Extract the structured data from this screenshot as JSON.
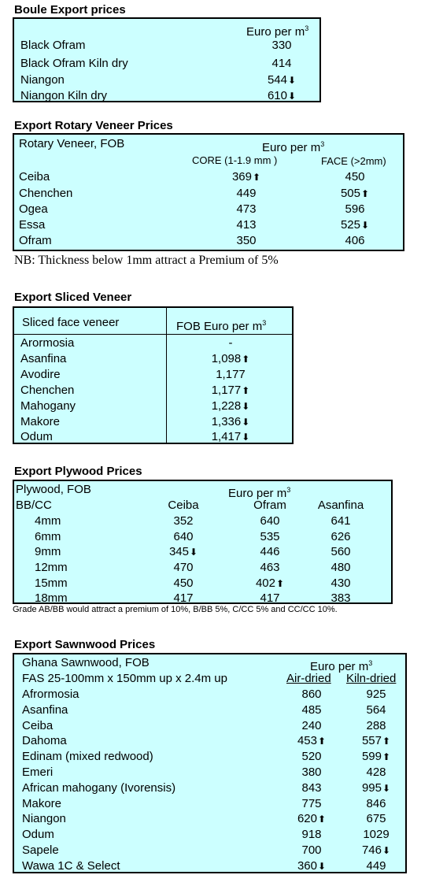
{
  "boule": {
    "title": "Boule Export prices",
    "header": "Euro per m",
    "header_sup": "3",
    "rows": [
      {
        "name": "Black Ofram",
        "value": "330",
        "arrow": ""
      },
      {
        "name": "Black Ofram  Kiln dry",
        "value": "414",
        "arrow": ""
      },
      {
        "name": "Niangon",
        "value": "544",
        "arrow": "down"
      },
      {
        "name": "Niangon Kiln dry",
        "value": "610",
        "arrow": "down"
      }
    ]
  },
  "rotary": {
    "title": "Export Rotary Veneer Prices",
    "label": "Rotary Veneer,  FOB",
    "header": "Euro   per m",
    "header_sup": "3",
    "col1": "CORE (1-1.9 mm )",
    "col2": "FACE (>2mm)",
    "rows": [
      {
        "name": "Ceiba",
        "core": "369",
        "core_arrow": "up",
        "face": "450",
        "face_arrow": ""
      },
      {
        "name": "Chenchen",
        "core": "449",
        "core_arrow": "",
        "face": "505",
        "face_arrow": "up"
      },
      {
        "name": "Ogea",
        "core": "473",
        "core_arrow": "",
        "face": "596",
        "face_arrow": ""
      },
      {
        "name": "Essa",
        "core": "413",
        "core_arrow": "",
        "face": "525",
        "face_arrow": "down"
      },
      {
        "name": "Ofram",
        "core": "350",
        "core_arrow": "",
        "face": "406",
        "face_arrow": ""
      }
    ],
    "note": "NB: Thickness below 1mm attract a Premium of 5%"
  },
  "sliced": {
    "title": "Export Sliced Veneer",
    "col1": "Sliced face veneer",
    "col2": "FOB Euro per m",
    "col2_sup": "3",
    "rows": [
      {
        "name": "Arormosia",
        "value": "-",
        "arrow": ""
      },
      {
        "name": "Asanfina",
        "value": "1,098",
        "arrow": "up"
      },
      {
        "name": "Avodire",
        "value": "1,177",
        "arrow": ""
      },
      {
        "name": "Chenchen",
        "value": "1,177",
        "arrow": "up"
      },
      {
        "name": "Mahogany",
        "value": "1,228",
        "arrow": "down"
      },
      {
        "name": "Makore",
        "value": "1,336",
        "arrow": "down"
      },
      {
        "name": "Odum",
        "value": "1,417",
        "arrow": "down"
      }
    ]
  },
  "plywood": {
    "title": "Export Plywood Prices",
    "label": "Plywood, FOB",
    "header": "Euro per m",
    "header_sup": "3",
    "grade": "BB/CC",
    "cols": [
      "Ceiba",
      "Ofram",
      "Asanfina"
    ],
    "rows": [
      {
        "size": "4mm",
        "v": [
          "352",
          "640",
          "641"
        ],
        "a": [
          "",
          "",
          ""
        ]
      },
      {
        "size": "6mm",
        "v": [
          "640",
          "535",
          "626"
        ],
        "a": [
          "",
          "",
          ""
        ]
      },
      {
        "size": "9mm",
        "v": [
          "345",
          "446",
          "560"
        ],
        "a": [
          "down",
          "",
          ""
        ]
      },
      {
        "size": "12mm",
        "v": [
          "470",
          "463",
          "480"
        ],
        "a": [
          "",
          "",
          ""
        ]
      },
      {
        "size": "15mm",
        "v": [
          "450",
          "402",
          "430"
        ],
        "a": [
          "",
          "up",
          ""
        ]
      },
      {
        "size": "18mm",
        "v": [
          "417",
          "417",
          "383"
        ],
        "a": [
          "",
          "",
          ""
        ]
      }
    ],
    "note": "Grade AB/BB would attract a premium of 10%, B/BB 5%, C/CC 5% and CC/CC 10%."
  },
  "sawn": {
    "title": "Export Sawnwood Prices",
    "label": "Ghana Sawnwood, FOB",
    "header": "Euro per m",
    "header_sup": "3",
    "spec": "FAS 25-100mm x 150mm up x 2.4m up",
    "col1": "Air-dried",
    "col2": "Kiln-dried",
    "rows": [
      {
        "name": "Afrormosia",
        "air": "860",
        "air_arrow": "",
        "kiln": "925",
        "kiln_arrow": ""
      },
      {
        "name": "Asanfina",
        "air": "485",
        "air_arrow": "",
        "kiln": "564",
        "kiln_arrow": ""
      },
      {
        "name": "Ceiba",
        "air": "240",
        "air_arrow": "",
        "kiln": "288",
        "kiln_arrow": ""
      },
      {
        "name": "Dahoma",
        "air": "453",
        "air_arrow": "up",
        "kiln": "557",
        "kiln_arrow": "up"
      },
      {
        "name": "Edinam (mixed redwood)",
        "air": "520",
        "air_arrow": "",
        "kiln": "599",
        "kiln_arrow": "up"
      },
      {
        "name": "Emeri",
        "air": "380",
        "air_arrow": "",
        "kiln": "428",
        "kiln_arrow": ""
      },
      {
        "name": "African mahogany (Ivorensis)",
        "air": "843",
        "air_arrow": "",
        "kiln": "995",
        "kiln_arrow": "down"
      },
      {
        "name": "Makore",
        "air": "775",
        "air_arrow": "",
        "kiln": "846",
        "kiln_arrow": ""
      },
      {
        "name": "Niangon",
        "air": "620",
        "air_arrow": "up",
        "kiln": "675",
        "kiln_arrow": ""
      },
      {
        "name": "Odum",
        "air": "918",
        "air_arrow": "",
        "kiln": "1029",
        "kiln_arrow": ""
      },
      {
        "name": "Sapele",
        "air": "700",
        "air_arrow": "",
        "kiln": "746",
        "kiln_arrow": "down"
      },
      {
        "name": "Wawa 1C & Select",
        "air": "360",
        "air_arrow": "down",
        "kiln": "449",
        "kiln_arrow": ""
      }
    ]
  },
  "icons": {
    "up": "arrow-up-icon",
    "down": "arrow-down-icon"
  },
  "colors": {
    "box_fill": "#ccffff",
    "border": "#000000"
  }
}
